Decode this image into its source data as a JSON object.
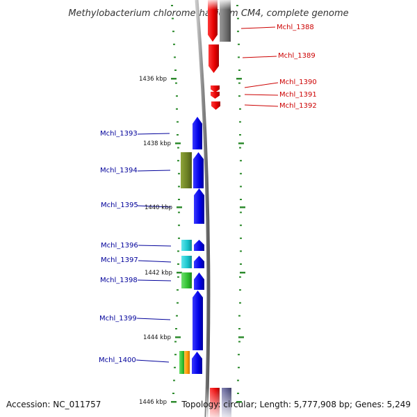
{
  "title": "Methylobacterium chloromethanicum CM4, complete genome",
  "accession": "Accession: NC_011757",
  "topology": "Topology: circular; Length: 5,777,908 bp; Genes: 5,249",
  "axis": {
    "unit": "kbp",
    "ticks": [
      {
        "label": "1436 kbp"
      },
      {
        "label": "1438 kbp"
      },
      {
        "label": "1440 kbp"
      },
      {
        "label": "1442 kbp"
      },
      {
        "label": "1444 kbp"
      },
      {
        "label": "1446 kbp"
      }
    ]
  },
  "colors": {
    "backbone": "#8c8c8c",
    "tick": "#2e8b2e",
    "forward_label": "#cc0000",
    "reverse_label": "#00009a",
    "red": "#e60000",
    "blue": "#0000e6",
    "olive": "#6b7f23",
    "cyan": "#18c4cc",
    "green": "#2fbf2f",
    "orange": "#ff9900",
    "gray": "#6e6e6e",
    "navy": "#555588"
  },
  "forward_genes": [
    {
      "name": "Mchl_1388"
    },
    {
      "name": "Mchl_1389"
    },
    {
      "name": "Mchl_1390"
    },
    {
      "name": "Mchl_1391"
    },
    {
      "name": "Mchl_1392"
    }
  ],
  "reverse_genes": [
    {
      "name": "Mchl_1393"
    },
    {
      "name": "Mchl_1394"
    },
    {
      "name": "Mchl_1395"
    },
    {
      "name": "Mchl_1396"
    },
    {
      "name": "Mchl_1397"
    },
    {
      "name": "Mchl_1398"
    },
    {
      "name": "Mchl_1399"
    },
    {
      "name": "Mchl_1400"
    }
  ]
}
